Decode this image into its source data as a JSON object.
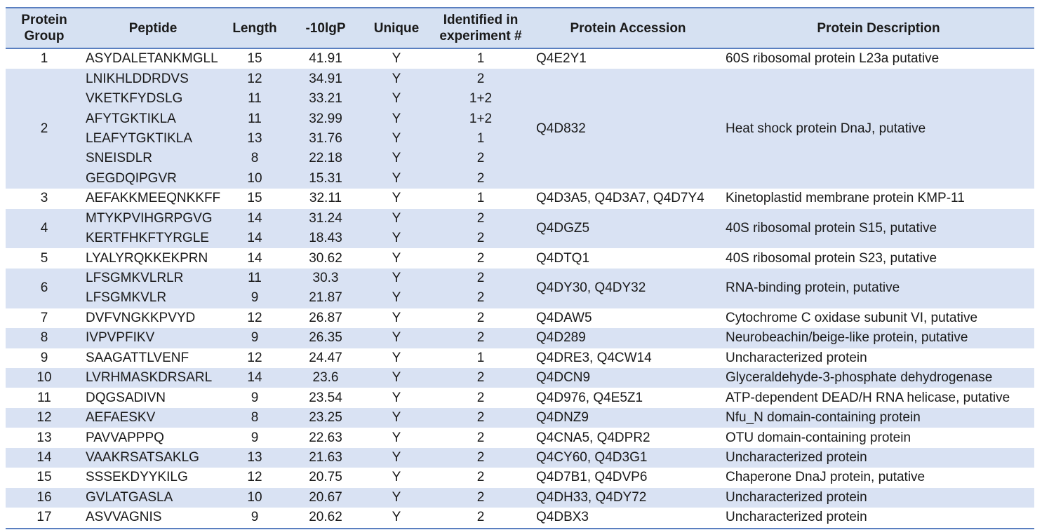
{
  "headers": {
    "group": "Protein Group",
    "peptide": "Peptide",
    "length": "Length",
    "score": "-10lgP",
    "unique": "Unique",
    "experiment": "Identified in experiment #",
    "accession": "Protein Accession",
    "description": "Protein Description"
  },
  "groups": [
    {
      "group": "1",
      "accession": "Q4E2Y1",
      "description": "60S ribosomal protein L23a  putative",
      "peptides": [
        {
          "peptide": "ASYDALETANKMGLL",
          "length": "15",
          "score": "41.91",
          "unique": "Y",
          "experiment": "1"
        }
      ]
    },
    {
      "group": "2",
      "accession": "Q4D832",
      "description": "Heat shock protein DnaJ, putative",
      "peptides": [
        {
          "peptide": "LNIKHLDDRDVS",
          "length": "12",
          "score": "34.91",
          "unique": "Y",
          "experiment": "2"
        },
        {
          "peptide": "VKETKFYDSLG",
          "length": "11",
          "score": "33.21",
          "unique": "Y",
          "experiment": "1+2"
        },
        {
          "peptide": "AFYTGKTIKLA",
          "length": "11",
          "score": "32.99",
          "unique": "Y",
          "experiment": "1+2"
        },
        {
          "peptide": "LEAFYTGKTIKLA",
          "length": "13",
          "score": "31.76",
          "unique": "Y",
          "experiment": "1"
        },
        {
          "peptide": "SNEISDLR",
          "length": "8",
          "score": "22.18",
          "unique": "Y",
          "experiment": "2"
        },
        {
          "peptide": "GEGDQIPGVR",
          "length": "10",
          "score": "15.31",
          "unique": "Y",
          "experiment": "2"
        }
      ]
    },
    {
      "group": "3",
      "accession": "Q4D3A5, Q4D3A7, Q4D7Y4",
      "description": "Kinetoplastid membrane protein KMP-11",
      "peptides": [
        {
          "peptide": "AEFAKKMEEQNKKFF",
          "length": "15",
          "score": "32.11",
          "unique": "Y",
          "experiment": "1"
        }
      ]
    },
    {
      "group": "4",
      "accession": "Q4DGZ5",
      "description": "40S ribosomal protein S15, putative",
      "peptides": [
        {
          "peptide": "MTYKPVIHGRPGVG",
          "length": "14",
          "score": "31.24",
          "unique": "Y",
          "experiment": "2"
        },
        {
          "peptide": "KERTFHKFTYRGLE",
          "length": "14",
          "score": "18.43",
          "unique": "Y",
          "experiment": "2"
        }
      ]
    },
    {
      "group": "5",
      "accession": "Q4DTQ1",
      "description": "40S ribosomal protein S23, putative",
      "peptides": [
        {
          "peptide": "LYALYRQKKEKPRN",
          "length": "14",
          "score": "30.62",
          "unique": "Y",
          "experiment": "2"
        }
      ]
    },
    {
      "group": "6",
      "accession": "Q4DY30, Q4DY32",
      "description": "RNA-binding protein, putative",
      "peptides": [
        {
          "peptide": "LFSGMKVLRLR",
          "length": "11",
          "score": "30.3",
          "unique": "Y",
          "experiment": "2"
        },
        {
          "peptide": "LFSGMKVLR",
          "length": "9",
          "score": "21.87",
          "unique": "Y",
          "experiment": "2"
        }
      ]
    },
    {
      "group": "7",
      "accession": "Q4DAW5",
      "description": "Cytochrome C oxidase subunit VI, putative",
      "peptides": [
        {
          "peptide": "DVFVNGKKPVYD",
          "length": "12",
          "score": "26.87",
          "unique": "Y",
          "experiment": "2"
        }
      ]
    },
    {
      "group": "8",
      "accession": "Q4D289",
      "description": "Neurobeachin/beige-like protein, putative",
      "peptides": [
        {
          "peptide": "IVPVPFIKV",
          "length": "9",
          "score": "26.35",
          "unique": "Y",
          "experiment": "2"
        }
      ]
    },
    {
      "group": "9",
      "accession": "Q4DRE3, Q4CW14",
      "description": "Uncharacterized protein",
      "peptides": [
        {
          "peptide": "SAAGATTLVENF",
          "length": "12",
          "score": "24.47",
          "unique": "Y",
          "experiment": "1"
        }
      ]
    },
    {
      "group": "10",
      "accession": "Q4DCN9",
      "description": "Glyceraldehyde-3-phosphate dehydrogenase",
      "peptides": [
        {
          "peptide": "LVRHMASKDRSARL",
          "length": "14",
          "score": "23.6",
          "unique": "Y",
          "experiment": "2"
        }
      ]
    },
    {
      "group": "11",
      "accession": "Q4D976, Q4E5Z1",
      "description": "ATP-dependent DEAD/H RNA helicase, putative",
      "peptides": [
        {
          "peptide": "DQGSADIVN",
          "length": "9",
          "score": "23.54",
          "unique": "Y",
          "experiment": "2"
        }
      ]
    },
    {
      "group": "12",
      "accession": "Q4DNZ9",
      "description": "Nfu_N domain-containing protein",
      "peptides": [
        {
          "peptide": "AEFAESKV",
          "length": "8",
          "score": "23.25",
          "unique": "Y",
          "experiment": "2"
        }
      ]
    },
    {
      "group": "13",
      "accession": "Q4CNA5, Q4DPR2",
      "description": "OTU domain-containing protein",
      "peptides": [
        {
          "peptide": "PAVVAPPPQ",
          "length": "9",
          "score": "22.63",
          "unique": "Y",
          "experiment": "2"
        }
      ]
    },
    {
      "group": "14",
      "accession": "Q4CY60, Q4D3G1",
      "description": "Uncharacterized protein",
      "peptides": [
        {
          "peptide": "VAAKRSATSAKLG",
          "length": "13",
          "score": "21.63",
          "unique": "Y",
          "experiment": "2"
        }
      ]
    },
    {
      "group": "15",
      "accession": "Q4D7B1, Q4DVP6",
      "description": "Chaperone DnaJ protein, putative",
      "peptides": [
        {
          "peptide": "SSSEKDYYKILG",
          "length": "12",
          "score": "20.75",
          "unique": "Y",
          "experiment": "2"
        }
      ]
    },
    {
      "group": "16",
      "accession": "Q4DH33, Q4DY72",
      "description": "Uncharacterized protein",
      "peptides": [
        {
          "peptide": "GVLATGASLA",
          "length": "10",
          "score": "20.67",
          "unique": "Y",
          "experiment": "2"
        }
      ]
    },
    {
      "group": "17",
      "accession": "Q4DBX3",
      "description": "Uncharacterized protein",
      "peptides": [
        {
          "peptide": "ASVVAGNIS",
          "length": "9",
          "score": "20.62",
          "unique": "Y",
          "experiment": "2"
        }
      ]
    }
  ]
}
